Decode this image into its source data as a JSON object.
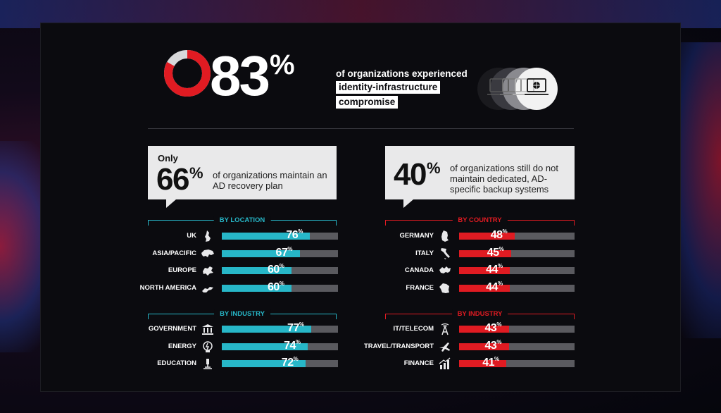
{
  "hero": {
    "value": "83",
    "symbol": "%",
    "ring_fraction": 0.83,
    "line1": "of organizations experienced",
    "highlight1": "identity-infrastructure",
    "highlight2": "compromise"
  },
  "callout_left": {
    "prefix": "Only",
    "value": "66",
    "symbol": "%",
    "text": "of organizations maintain an AD recovery plan"
  },
  "callout_right": {
    "value": "40",
    "symbol": "%",
    "text": "of organizations still do not maintain dedicated, AD-specific backup systems"
  },
  "colors": {
    "teal": "#27b7c8",
    "red": "#e01b22",
    "track": "#5a5a5f"
  },
  "chart_data": [
    {
      "type": "bar",
      "title": "BY LOCATION",
      "color": "#27b7c8",
      "categories": [
        "UK",
        "ASIA/PACIFIC",
        "EUROPE",
        "NORTH AMERICA"
      ],
      "icons": [
        "uk-map-icon",
        "asia-pacific-map-icon",
        "europe-map-icon",
        "north-america-map-icon"
      ],
      "values": [
        76,
        67,
        60,
        60
      ],
      "ylim": [
        0,
        100
      ]
    },
    {
      "type": "bar",
      "title": "BY INDUSTRY",
      "color": "#27b7c8",
      "categories": [
        "GOVERNMENT",
        "ENERGY",
        "EDUCATION"
      ],
      "icons": [
        "government-building-icon",
        "energy-bulb-icon",
        "education-microscope-icon"
      ],
      "values": [
        77,
        74,
        72
      ],
      "ylim": [
        0,
        100
      ]
    },
    {
      "type": "bar",
      "title": "BY COUNTRY",
      "color": "#e01b22",
      "categories": [
        "GERMANY",
        "ITALY",
        "CANADA",
        "FRANCE"
      ],
      "icons": [
        "germany-map-icon",
        "italy-map-icon",
        "canada-map-icon",
        "france-map-icon"
      ],
      "values": [
        48,
        45,
        44,
        44
      ],
      "ylim": [
        0,
        100
      ]
    },
    {
      "type": "bar",
      "title": "BY INDUSTRY",
      "color": "#e01b22",
      "categories": [
        "IT/TELECOM",
        "TRAVEL/TRANSPORT",
        "FINANCE"
      ],
      "icons": [
        "telecom-tower-icon",
        "airplane-icon",
        "finance-chart-icon"
      ],
      "values": [
        43,
        43,
        41
      ],
      "ylim": [
        0,
        100
      ]
    }
  ]
}
